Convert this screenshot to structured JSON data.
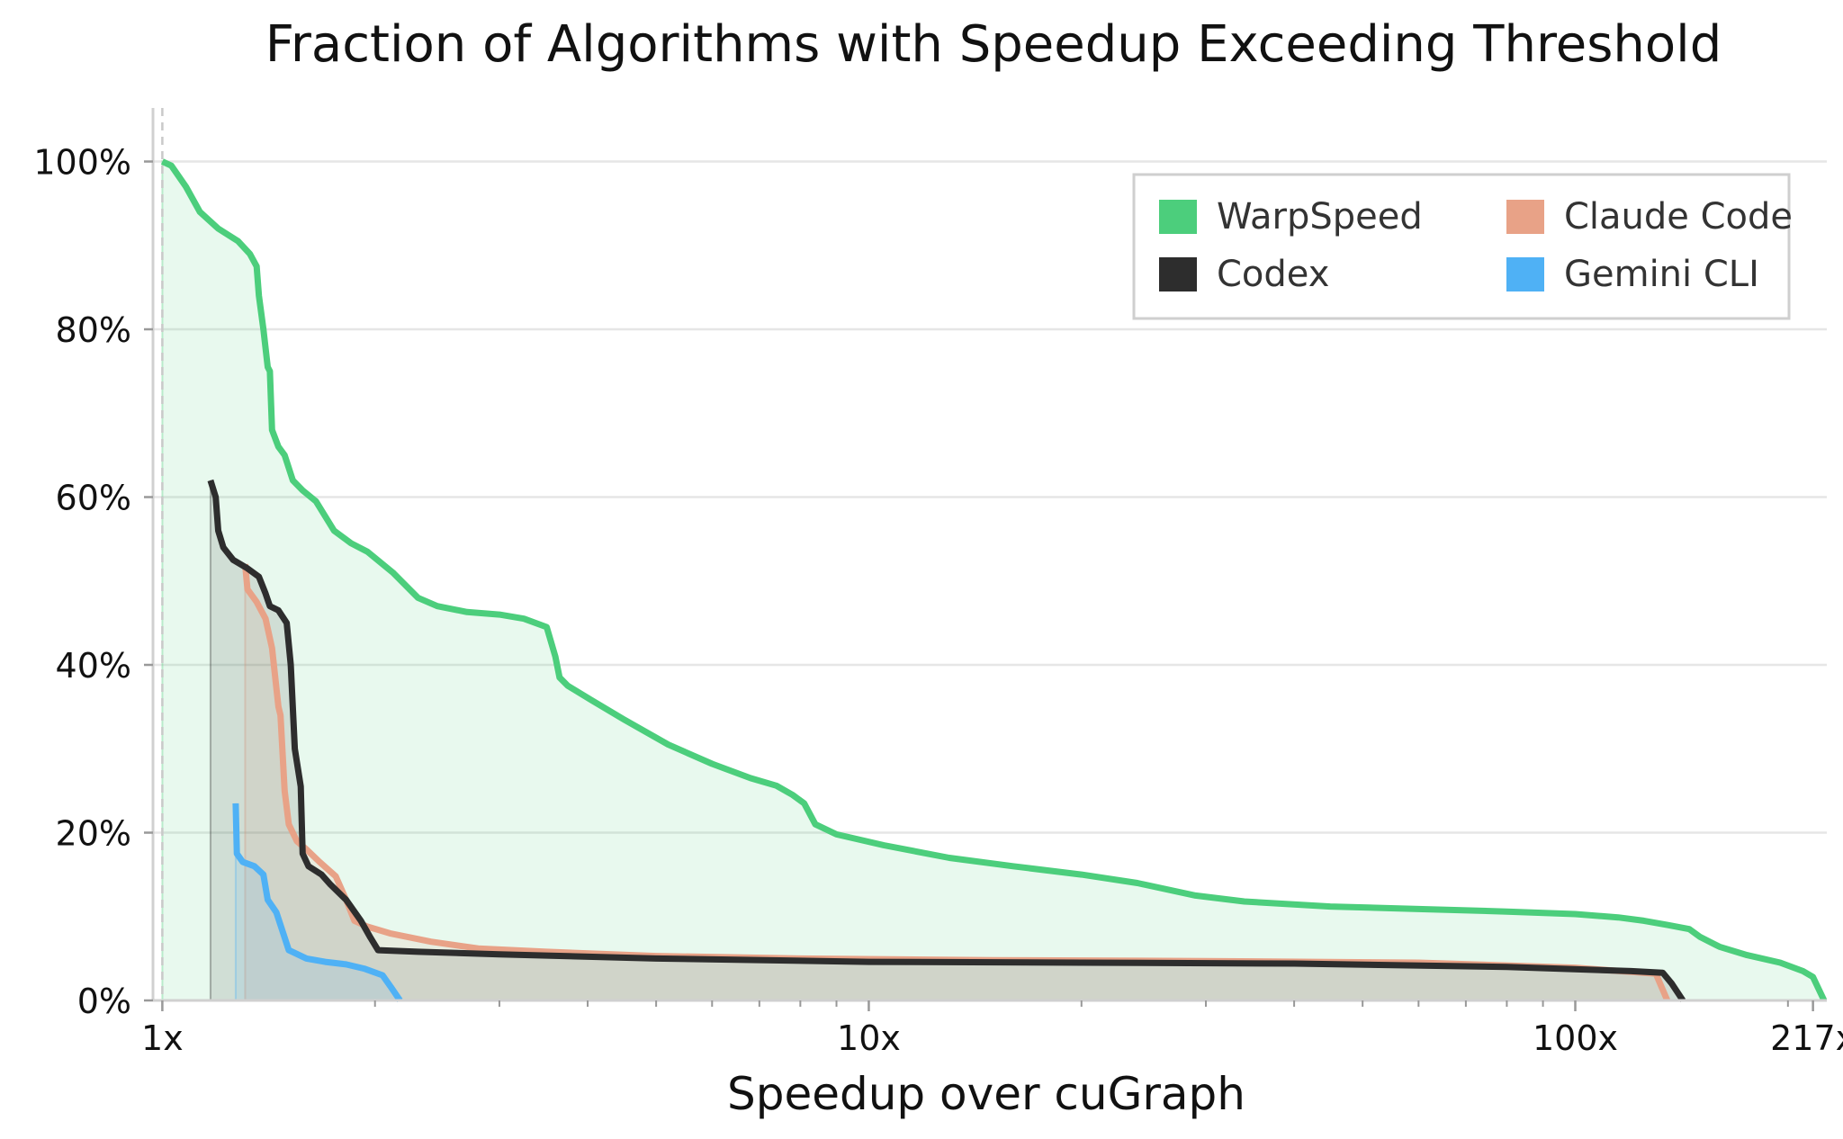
{
  "chart_data": {
    "type": "area",
    "title": "Fraction of Algorithms with Speedup Exceeding Threshold",
    "xlabel": "Speedup over cuGraph",
    "ylabel": "",
    "xscale": "log",
    "xlim": [
      0.97,
      227
    ],
    "ylim": [
      0,
      100
    ],
    "x_ticks": [
      {
        "value": 1,
        "label": "1x"
      },
      {
        "value": 10,
        "label": "10x"
      },
      {
        "value": 100,
        "label": "100x"
      },
      {
        "value": 217,
        "label": "217x"
      }
    ],
    "y_ticks": [
      {
        "value": 0,
        "label": "0%"
      },
      {
        "value": 20,
        "label": "20%"
      },
      {
        "value": 40,
        "label": "40%"
      },
      {
        "value": 60,
        "label": "60%"
      },
      {
        "value": 80,
        "label": "80%"
      },
      {
        "value": 100,
        "label": "100%"
      }
    ],
    "grid": "horizontal",
    "reference_line": {
      "x": 1,
      "style": "dashed"
    },
    "legend": {
      "position": "top-right",
      "columns": 2
    },
    "series": [
      {
        "name": "WarpSpeed",
        "color": "#4cce7c",
        "points": [
          [
            1.0,
            100
          ],
          [
            1.03,
            99.5
          ],
          [
            1.08,
            97
          ],
          [
            1.13,
            94
          ],
          [
            1.2,
            92
          ],
          [
            1.28,
            90.5
          ],
          [
            1.33,
            89
          ],
          [
            1.36,
            87.5
          ],
          [
            1.37,
            84
          ],
          [
            1.39,
            80
          ],
          [
            1.41,
            75.5
          ],
          [
            1.42,
            75
          ],
          [
            1.43,
            68
          ],
          [
            1.46,
            66
          ],
          [
            1.49,
            65
          ],
          [
            1.53,
            62
          ],
          [
            1.58,
            60.8
          ],
          [
            1.65,
            59.5
          ],
          [
            1.75,
            56
          ],
          [
            1.85,
            54.5
          ],
          [
            1.95,
            53.5
          ],
          [
            2.12,
            51
          ],
          [
            2.3,
            48
          ],
          [
            2.45,
            47
          ],
          [
            2.7,
            46.3
          ],
          [
            3.0,
            46
          ],
          [
            3.25,
            45.5
          ],
          [
            3.5,
            44.5
          ],
          [
            3.6,
            41
          ],
          [
            3.65,
            38.5
          ],
          [
            3.75,
            37.5
          ],
          [
            4.05,
            35.8
          ],
          [
            4.5,
            33.5
          ],
          [
            5.2,
            30.5
          ],
          [
            6.0,
            28.2
          ],
          [
            6.8,
            26.5
          ],
          [
            7.4,
            25.6
          ],
          [
            7.8,
            24.5
          ],
          [
            8.1,
            23.5
          ],
          [
            8.4,
            21
          ],
          [
            9.0,
            19.8
          ],
          [
            10.5,
            18.5
          ],
          [
            13.0,
            17.0
          ],
          [
            16.0,
            16.0
          ],
          [
            20.0,
            15.0
          ],
          [
            24.0,
            14.0
          ],
          [
            29.0,
            12.5
          ],
          [
            34.0,
            11.8
          ],
          [
            45.0,
            11.2
          ],
          [
            60.0,
            10.9
          ],
          [
            80.0,
            10.6
          ],
          [
            100.0,
            10.3
          ],
          [
            115.0,
            9.9
          ],
          [
            125.0,
            9.5
          ],
          [
            135.0,
            9.0
          ],
          [
            145.0,
            8.5
          ],
          [
            150.0,
            7.6
          ],
          [
            160.0,
            6.4
          ],
          [
            175.0,
            5.4
          ],
          [
            195.0,
            4.5
          ],
          [
            210.0,
            3.5
          ],
          [
            217.0,
            2.8
          ],
          [
            225.0,
            0
          ]
        ]
      },
      {
        "name": "Claude Code",
        "color": "#e8a287",
        "points": [
          [
            1.31,
            52
          ],
          [
            1.32,
            49
          ],
          [
            1.36,
            47.5
          ],
          [
            1.4,
            45.5
          ],
          [
            1.43,
            42
          ],
          [
            1.46,
            35
          ],
          [
            1.47,
            34
          ],
          [
            1.49,
            25
          ],
          [
            1.51,
            21
          ],
          [
            1.55,
            19
          ],
          [
            1.6,
            18
          ],
          [
            1.67,
            16.5
          ],
          [
            1.76,
            14.8
          ],
          [
            1.82,
            12
          ],
          [
            1.87,
            9.5
          ],
          [
            1.95,
            8.8
          ],
          [
            2.1,
            8.0
          ],
          [
            2.4,
            7.0
          ],
          [
            2.8,
            6.2
          ],
          [
            3.5,
            5.8
          ],
          [
            5.0,
            5.3
          ],
          [
            8.0,
            5.0
          ],
          [
            15.0,
            4.8
          ],
          [
            30.0,
            4.7
          ],
          [
            60.0,
            4.5
          ],
          [
            100.0,
            3.9
          ],
          [
            120.0,
            3.4
          ],
          [
            130.0,
            3.2
          ],
          [
            135.0,
            0
          ]
        ]
      },
      {
        "name": "Codex",
        "color": "#2d2d2d",
        "points": [
          [
            1.17,
            62
          ],
          [
            1.19,
            60
          ],
          [
            1.2,
            56
          ],
          [
            1.22,
            54
          ],
          [
            1.26,
            52.5
          ],
          [
            1.32,
            51.5
          ],
          [
            1.37,
            50.5
          ],
          [
            1.4,
            48.5
          ],
          [
            1.42,
            47
          ],
          [
            1.46,
            46.5
          ],
          [
            1.5,
            45
          ],
          [
            1.52,
            40
          ],
          [
            1.54,
            30
          ],
          [
            1.57,
            25.5
          ],
          [
            1.58,
            17.5
          ],
          [
            1.61,
            16
          ],
          [
            1.68,
            15
          ],
          [
            1.73,
            13.8
          ],
          [
            1.82,
            12
          ],
          [
            1.91,
            9.5
          ],
          [
            1.97,
            7.5
          ],
          [
            2.02,
            6
          ],
          [
            2.3,
            5.8
          ],
          [
            3.0,
            5.5
          ],
          [
            5.0,
            5.0
          ],
          [
            10.0,
            4.6
          ],
          [
            20.0,
            4.5
          ],
          [
            40.0,
            4.4
          ],
          [
            80.0,
            4.0
          ],
          [
            120.0,
            3.5
          ],
          [
            133.0,
            3.3
          ],
          [
            137.0,
            2.0
          ],
          [
            142.0,
            0
          ]
        ]
      },
      {
        "name": "Gemini CLI",
        "color": "#4fb1f5",
        "points": [
          [
            1.27,
            23.5
          ],
          [
            1.275,
            17.5
          ],
          [
            1.3,
            16.5
          ],
          [
            1.35,
            16
          ],
          [
            1.39,
            15
          ],
          [
            1.41,
            12
          ],
          [
            1.45,
            10.5
          ],
          [
            1.47,
            9
          ],
          [
            1.51,
            6
          ],
          [
            1.6,
            5
          ],
          [
            1.7,
            4.6
          ],
          [
            1.82,
            4.3
          ],
          [
            1.93,
            3.8
          ],
          [
            2.05,
            3
          ],
          [
            2.11,
            1.5
          ],
          [
            2.17,
            0
          ]
        ]
      }
    ]
  }
}
